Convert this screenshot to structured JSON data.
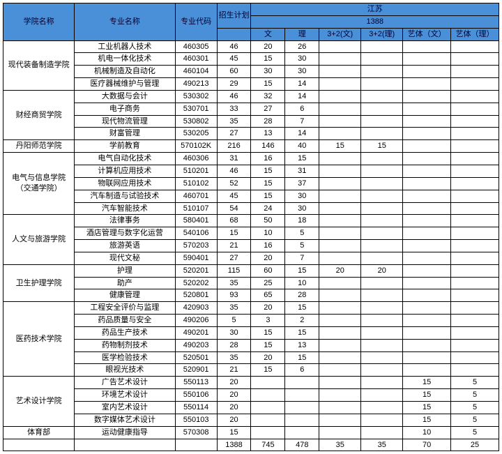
{
  "header": {
    "college": "学院名称",
    "major": "专业名称",
    "code": "专业代码",
    "plan": "招生计划",
    "province": "江苏",
    "province_code": "1388",
    "wen": "文",
    "li": "理",
    "sanjia_wen": "3+2(文)",
    "sanjia_li": "3+2(理)",
    "yiti_wen": "艺体（文）",
    "yiti_li": "艺体（理）"
  },
  "colleges": [
    {
      "name": "现代装备制造学院",
      "rows": [
        {
          "major": "工业机器人技术",
          "code": "460305",
          "plan": "46",
          "wen": "20",
          "li": "26",
          "sw": "",
          "sl": "",
          "yw": "",
          "yl": ""
        },
        {
          "major": "机电一体化技术",
          "code": "460301",
          "plan": "45",
          "wen": "15",
          "li": "30",
          "sw": "",
          "sl": "",
          "yw": "",
          "yl": ""
        },
        {
          "major": "机械制造及自动化",
          "code": "460104",
          "plan": "60",
          "wen": "30",
          "li": "30",
          "sw": "",
          "sl": "",
          "yw": "",
          "yl": ""
        },
        {
          "major": "医疗器械维护与管理",
          "code": "490213",
          "plan": "29",
          "wen": "15",
          "li": "14",
          "sw": "",
          "sl": "",
          "yw": "",
          "yl": ""
        }
      ]
    },
    {
      "name": "财经商贸学院",
      "rows": [
        {
          "major": "大数据与会计",
          "code": "530302",
          "plan": "46",
          "wen": "32",
          "li": "14",
          "sw": "",
          "sl": "",
          "yw": "",
          "yl": ""
        },
        {
          "major": "电子商务",
          "code": "530701",
          "plan": "33",
          "wen": "27",
          "li": "6",
          "sw": "",
          "sl": "",
          "yw": "",
          "yl": ""
        },
        {
          "major": "现代物流管理",
          "code": "530802",
          "plan": "35",
          "wen": "28",
          "li": "7",
          "sw": "",
          "sl": "",
          "yw": "",
          "yl": ""
        },
        {
          "major": "财富管理",
          "code": "530205",
          "plan": "27",
          "wen": "13",
          "li": "14",
          "sw": "",
          "sl": "",
          "yw": "",
          "yl": ""
        }
      ]
    },
    {
      "name": "丹阳师范学院",
      "rows": [
        {
          "major": "学前教育",
          "code": "570102K",
          "plan": "216",
          "wen": "146",
          "li": "40",
          "sw": "15",
          "sl": "15",
          "yw": "",
          "yl": ""
        }
      ]
    },
    {
      "name": "电气与信息学院（交通学院）",
      "name_lines": [
        "电气与信息学院",
        "（交通学院）"
      ],
      "rows": [
        {
          "major": "电气自动化技术",
          "code": "460306",
          "plan": "31",
          "wen": "16",
          "li": "15",
          "sw": "",
          "sl": "",
          "yw": "",
          "yl": ""
        },
        {
          "major": "计算机应用技术",
          "code": "510201",
          "plan": "46",
          "wen": "15",
          "li": "31",
          "sw": "",
          "sl": "",
          "yw": "",
          "yl": ""
        },
        {
          "major": "物联网应用技术",
          "code": "510102",
          "plan": "52",
          "wen": "15",
          "li": "37",
          "sw": "",
          "sl": "",
          "yw": "",
          "yl": ""
        },
        {
          "major": "汽车制造与试验技术",
          "code": "460701",
          "plan": "45",
          "wen": "15",
          "li": "30",
          "sw": "",
          "sl": "",
          "yw": "",
          "yl": ""
        },
        {
          "major": "汽车智能技术",
          "code": "510107",
          "plan": "54",
          "wen": "24",
          "li": "30",
          "sw": "",
          "sl": "",
          "yw": "",
          "yl": ""
        }
      ]
    },
    {
      "name": "人文与旅游学院",
      "rows": [
        {
          "major": "法律事务",
          "code": "580401",
          "plan": "68",
          "wen": "50",
          "li": "18",
          "sw": "",
          "sl": "",
          "yw": "",
          "yl": ""
        },
        {
          "major": "酒店管理与数字化运营",
          "code": "540106",
          "plan": "15",
          "wen": "10",
          "li": "5",
          "sw": "",
          "sl": "",
          "yw": "",
          "yl": ""
        },
        {
          "major": "旅游英语",
          "code": "570203",
          "plan": "21",
          "wen": "16",
          "li": "5",
          "sw": "",
          "sl": "",
          "yw": "",
          "yl": ""
        },
        {
          "major": "现代文秘",
          "code": "590401",
          "plan": "27",
          "wen": "20",
          "li": "7",
          "sw": "",
          "sl": "",
          "yw": "",
          "yl": ""
        }
      ]
    },
    {
      "name": "卫生护理学院",
      "rows": [
        {
          "major": "护理",
          "code": "520201",
          "plan": "115",
          "wen": "60",
          "li": "15",
          "sw": "20",
          "sl": "20",
          "yw": "",
          "yl": ""
        },
        {
          "major": "助产",
          "code": "520202",
          "plan": "35",
          "wen": "25",
          "li": "10",
          "sw": "",
          "sl": "",
          "yw": "",
          "yl": ""
        },
        {
          "major": "健康管理",
          "code": "520801",
          "plan": "93",
          "wen": "65",
          "li": "28",
          "sw": "",
          "sl": "",
          "yw": "",
          "yl": ""
        }
      ]
    },
    {
      "name": "医药技术学院",
      "rows": [
        {
          "major": "工程安全评价与监理",
          "code": "420903",
          "plan": "35",
          "wen": "20",
          "li": "15",
          "sw": "",
          "sl": "",
          "yw": "",
          "yl": ""
        },
        {
          "major": "药品质量与安全",
          "code": "490206",
          "plan": "5",
          "wen": "3",
          "li": "2",
          "sw": "",
          "sl": "",
          "yw": "",
          "yl": ""
        },
        {
          "major": "药品生产技术",
          "code": "490201",
          "plan": "30",
          "wen": "15",
          "li": "15",
          "sw": "",
          "sl": "",
          "yw": "",
          "yl": ""
        },
        {
          "major": "药物制剂技术",
          "code": "490203",
          "plan": "28",
          "wen": "15",
          "li": "13",
          "sw": "",
          "sl": "",
          "yw": "",
          "yl": ""
        },
        {
          "major": "医学检验技术",
          "code": "520501",
          "plan": "35",
          "wen": "20",
          "li": "15",
          "sw": "",
          "sl": "",
          "yw": "",
          "yl": ""
        },
        {
          "major": "眼视光技术",
          "code": "520901",
          "plan": "21",
          "wen": "15",
          "li": "6",
          "sw": "",
          "sl": "",
          "yw": "",
          "yl": ""
        }
      ]
    },
    {
      "name": "艺术设计学院",
      "rows": [
        {
          "major": "广告艺术设计",
          "code": "550113",
          "plan": "20",
          "wen": "",
          "li": "",
          "sw": "",
          "sl": "",
          "yw": "15",
          "yl": "5"
        },
        {
          "major": "环境艺术设计",
          "code": "550106",
          "plan": "20",
          "wen": "",
          "li": "",
          "sw": "",
          "sl": "",
          "yw": "15",
          "yl": "5"
        },
        {
          "major": "室内艺术设计",
          "code": "550114",
          "plan": "20",
          "wen": "",
          "li": "",
          "sw": "",
          "sl": "",
          "yw": "15",
          "yl": "5"
        },
        {
          "major": "数字媒体艺术设计",
          "code": "550103",
          "plan": "20",
          "wen": "",
          "li": "",
          "sw": "",
          "sl": "",
          "yw": "15",
          "yl": "5"
        }
      ]
    },
    {
      "name": "体育部",
      "rows": [
        {
          "major": "运动健康指导",
          "code": "570308",
          "plan": "15",
          "wen": "",
          "li": "",
          "sw": "",
          "sl": "",
          "yw": "10",
          "yl": "5"
        }
      ]
    }
  ],
  "totals": {
    "plan": "1388",
    "wen": "745",
    "li": "478",
    "sw": "35",
    "sl": "35",
    "yw": "70",
    "yl": "25"
  }
}
